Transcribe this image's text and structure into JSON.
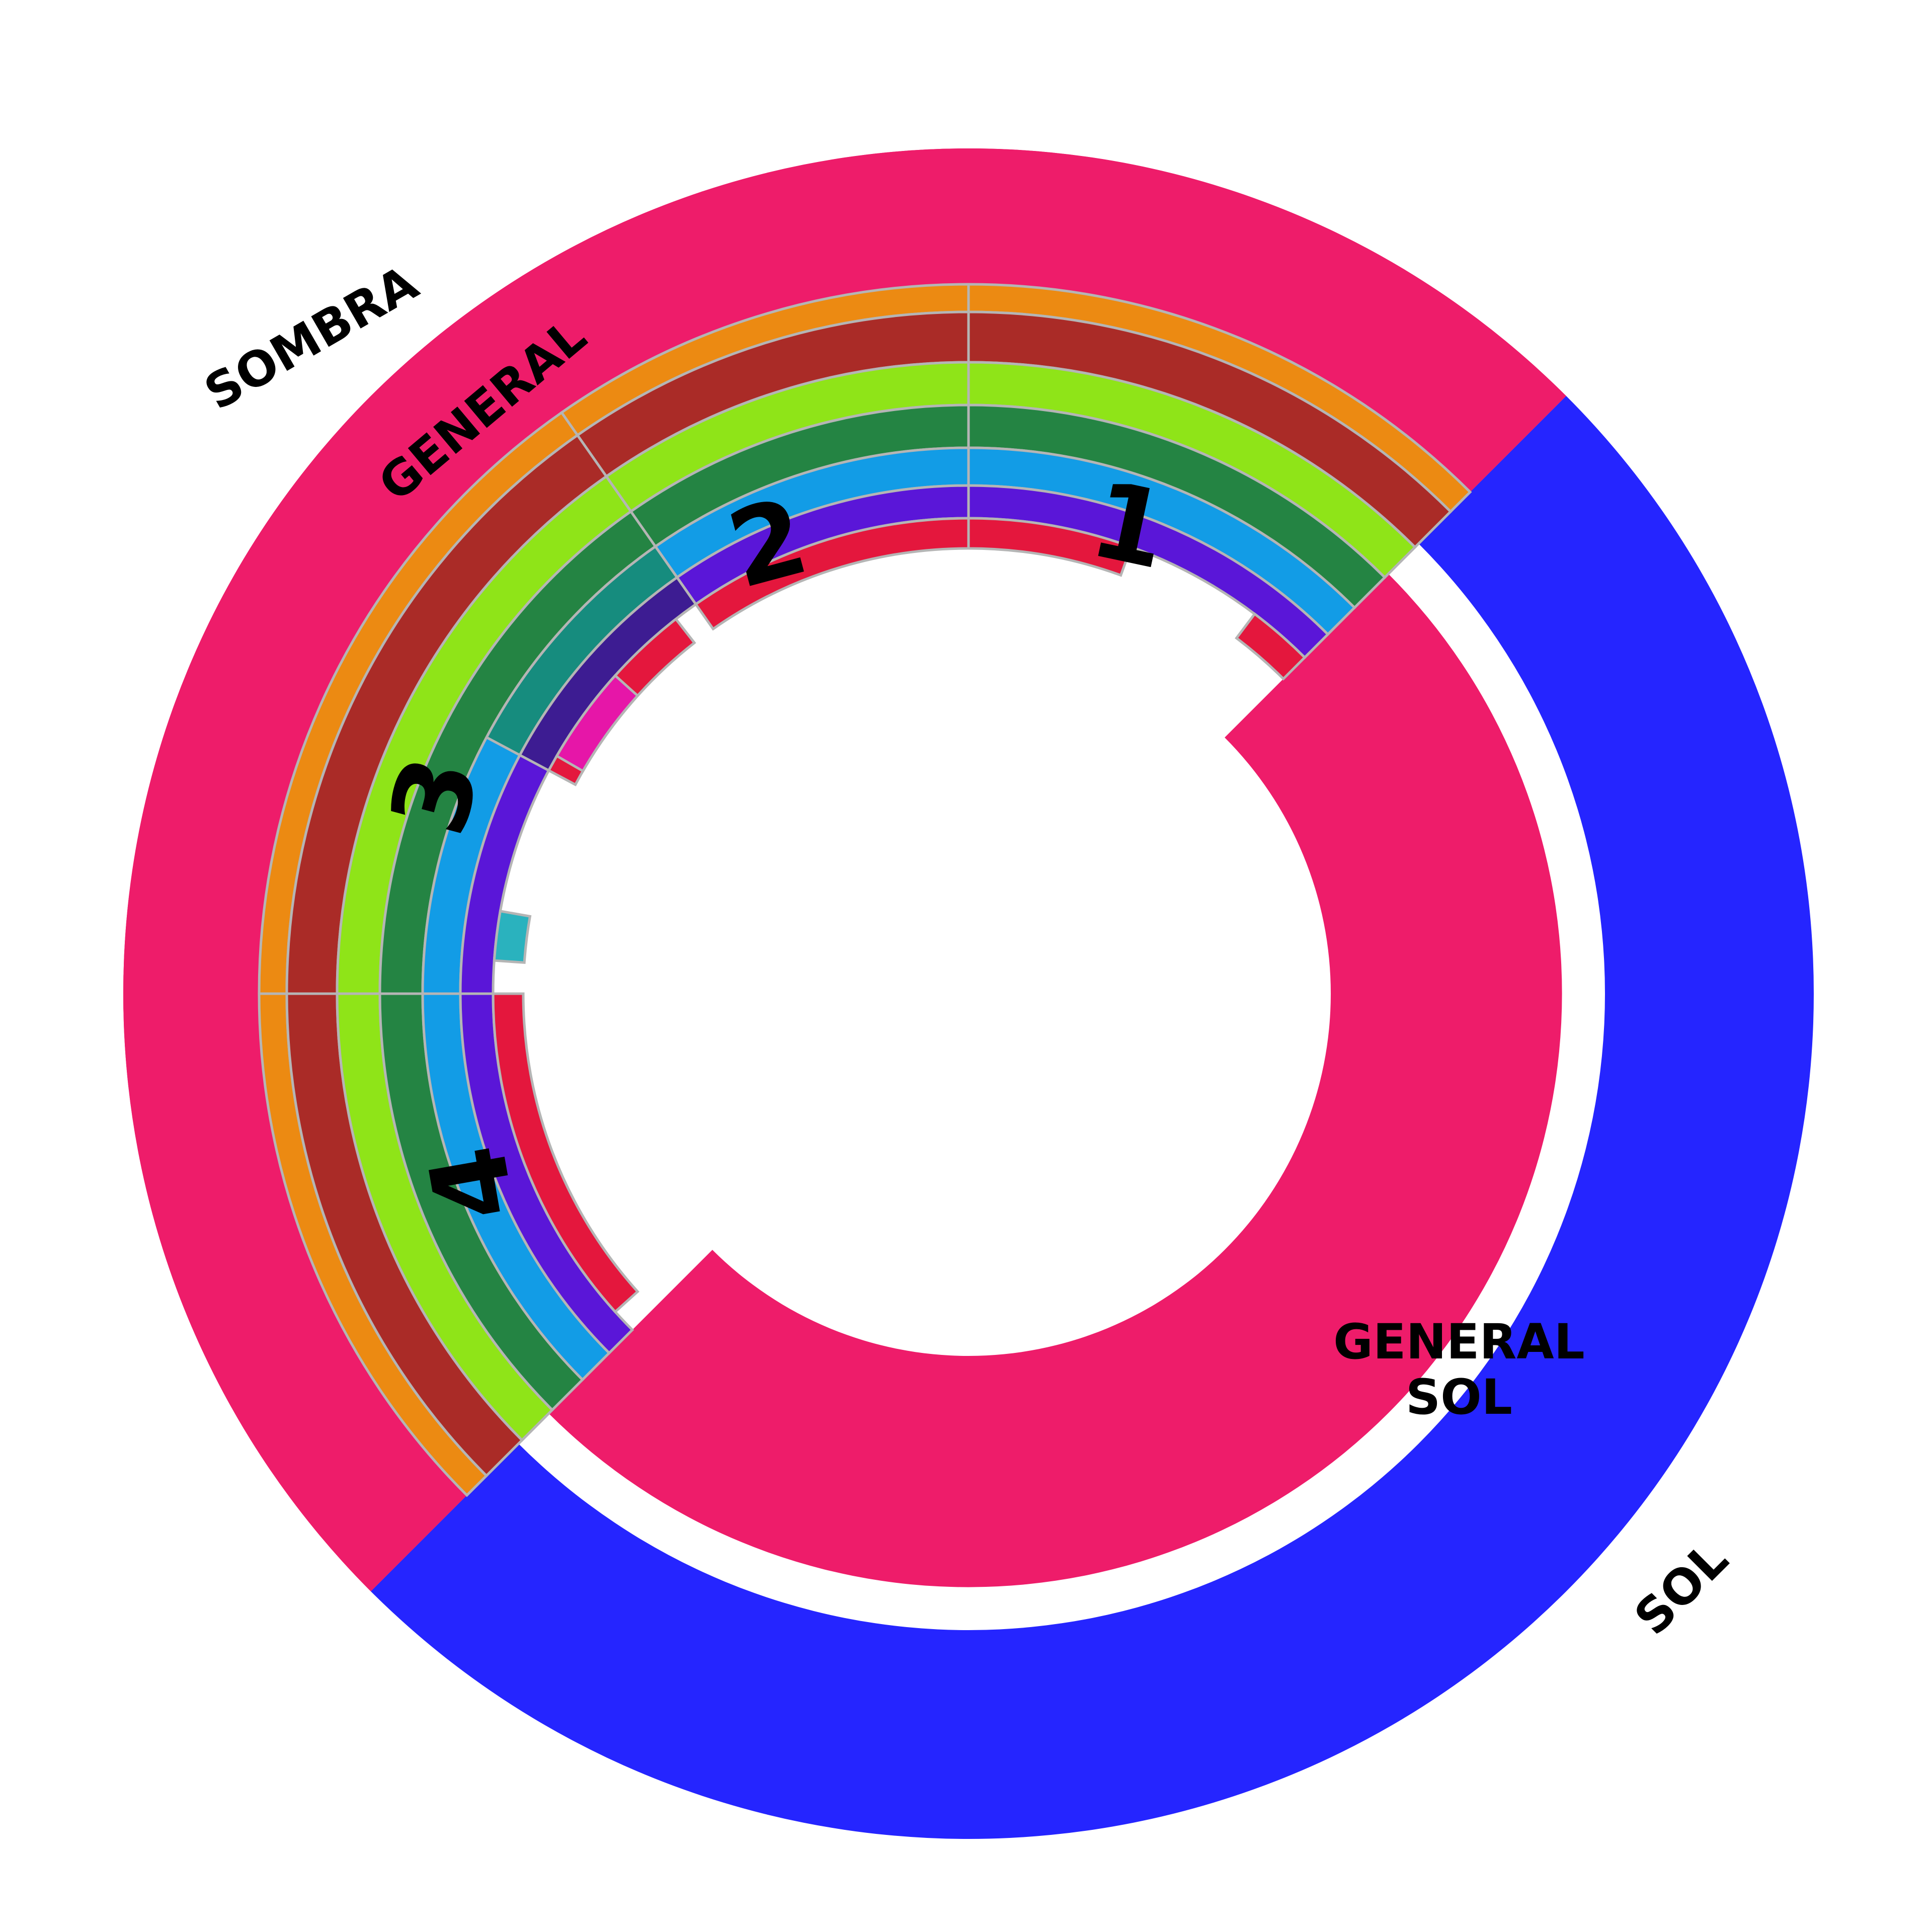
{
  "zones": [
    {
      "id": "sombra",
      "label": "SOMBRA",
      "color": "#2525FF"
    },
    {
      "id": "sol",
      "label": "SOL",
      "color": "#EE1C6A"
    }
  ],
  "inner_labels": {
    "general_sombra": "GENERAL",
    "general_sol_line1": "GENERAL",
    "general_sol_line2": "SOL"
  },
  "sections": [
    {
      "id": "s1",
      "label": "1"
    },
    {
      "id": "s2",
      "label": "2"
    },
    {
      "id": "s3",
      "label": "3"
    },
    {
      "id": "s4",
      "label": "4"
    }
  ],
  "row_colors": {
    "orange": "#EC8A12",
    "brown": "#AA2B27",
    "lime": "#8FE418",
    "green": "#248443",
    "teal": "#168C7E",
    "sky": "#129CE6",
    "purple": "#5A16D8",
    "indigo": "#3D1C92",
    "red": "#E4173D",
    "magenta": "#E616A8",
    "cyan": "#2AB2BE"
  },
  "separator_color": "#B5B5B5"
}
